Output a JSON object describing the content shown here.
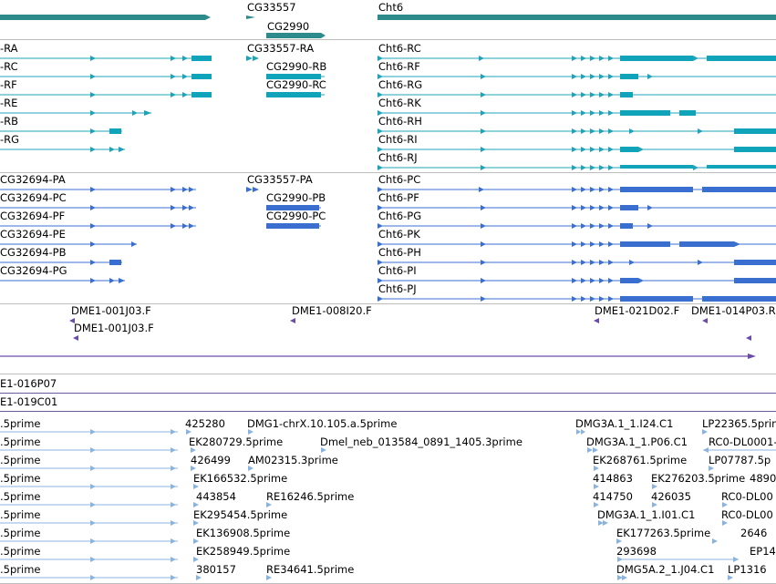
{
  "colors": {
    "transcript_rna": "#1fa3b8",
    "transcript_rna_thick": "#10a4bb",
    "gene": "#2e8b8b",
    "protein": "#3a6fd0",
    "clone": "#6a4ca8",
    "est": "#8ab4e0"
  },
  "genes": {
    "left": "",
    "cg33557": "CG33557",
    "cg2990": "CG2990",
    "cht6": "Cht6"
  },
  "rna": {
    "left": [
      "-RA",
      "-RC",
      "-RF",
      "-RE",
      "-RB",
      "-RG"
    ],
    "cg33557_ra": "CG33557-RA",
    "cg2990": [
      "CG2990-RB",
      "CG2990-RC"
    ],
    "cht6": [
      "Cht6-RC",
      "Cht6-RF",
      "Cht6-RG",
      "Cht6-RK",
      "Cht6-RH",
      "Cht6-RI",
      "Cht6-RJ"
    ]
  },
  "protein": {
    "left": [
      "CG32694-PA",
      "CG32694-PC",
      "CG32694-PF",
      "CG32694-PE",
      "CG32694-PB",
      "CG32694-PG"
    ],
    "cg33557_pa": "CG33557-PA",
    "cg2990": [
      "CG2990-PB",
      "CG2990-PC"
    ],
    "cht6": [
      "Cht6-PC",
      "Cht6-PF",
      "Cht6-PG",
      "Cht6-PK",
      "Cht6-PH",
      "Cht6-PI",
      "Cht6-PJ"
    ]
  },
  "clones": {
    "a1": "DME1-001J03.F",
    "a2": "DME1-001J03.F",
    "b": "DME1-008I20.F",
    "c": "DME1-021D02.F",
    "d": "DME1-014P03.R",
    "e": "E1-016P07",
    "f": "E1-019C01"
  },
  "est": {
    "left": [
      ".5prime",
      ".5prime",
      ".5prime",
      ".5prime",
      ".5prime",
      ".5prime",
      ".5prime",
      ".5prime",
      ".5prime"
    ],
    "mid1": [
      "425280",
      "EK280729.5prime",
      "426499",
      "EK166532.5prime",
      "443854",
      "EK295454.5prime",
      "EK136908.5prime",
      "EK258949.5prime",
      "380157"
    ],
    "mid2": [
      "DMG1-chrX.10.105.a.5prime",
      "Dmel_neb_013584_0891_1405.3prime",
      "AM02315.3prime",
      "RE16246.5prime",
      "RE34641.5prime"
    ],
    "right1": [
      "DMG3A.1_1.I24.C1",
      "DMG3A.1_1.P06.C1",
      "EK268761.5prime",
      "414863",
      "414750",
      "DMG3A.1_1.I01.C1",
      "EK177263.5prime",
      "293698",
      "DMG5A.2_1.J04.C1"
    ],
    "right2": [
      "EK276203.5prime",
      "426035"
    ],
    "right3": [
      "LP22365.5prime",
      "RC0-DL0001-",
      "LP07787.5p",
      "4890",
      "RC0-DL00",
      "RC0-DL00",
      "2646",
      "EP14",
      "LP1316"
    ]
  }
}
